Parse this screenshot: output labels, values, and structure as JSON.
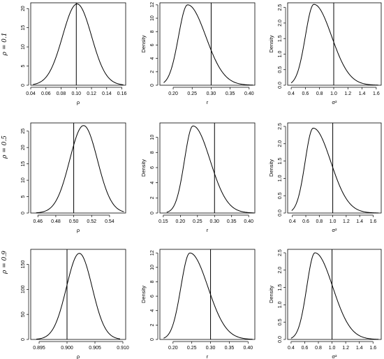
{
  "row_labels": [
    "ρ = 0.1",
    "ρ = 0.5",
    "ρ = 0.9"
  ],
  "chart_data": [
    {
      "type": "line",
      "ylabel": "",
      "xlabel": "ρ",
      "xlim": [
        0.04,
        0.165
      ],
      "ylim": [
        0,
        21.5
      ],
      "xticks": [
        "0.04",
        "0.06",
        "0.08",
        "0.10",
        "0.12",
        "0.14",
        "0.16"
      ],
      "xtick_values": [
        0.04,
        0.06,
        0.08,
        0.1,
        0.12,
        0.14,
        0.16
      ],
      "yticks": [
        "0",
        "5",
        "10",
        "15",
        "20"
      ],
      "ytick_values": [
        0,
        5,
        10,
        15,
        20
      ],
      "curve": {
        "shape": "normal",
        "mode": 0.101,
        "peak": 21.2,
        "sd": 0.019,
        "from": 0.043,
        "to": 0.162
      },
      "vline": 0.1
    },
    {
      "type": "line",
      "ylabel": "Density",
      "xlabel": "r",
      "xlim": [
        0.165,
        0.415
      ],
      "ylim": [
        0,
        12.3
      ],
      "xticks": [
        "0.20",
        "0.25",
        "0.30",
        "0.35",
        "0.40"
      ],
      "xtick_values": [
        0.2,
        0.25,
        0.3,
        0.35,
        0.4
      ],
      "yticks": [
        "0",
        "2",
        "4",
        "6",
        "8",
        "10",
        "12"
      ],
      "ytick_values": [
        0,
        2,
        4,
        6,
        8,
        10,
        12
      ],
      "curve": {
        "shape": "skewed",
        "mode": 0.238,
        "peak": 12.0,
        "sd_left": 0.024,
        "sd_right": 0.048,
        "from": 0.175,
        "to": 0.41
      },
      "vline": 0.3
    },
    {
      "type": "line",
      "ylabel": "Density",
      "xlabel": "σ²",
      "xlim": [
        0.35,
        1.67
      ],
      "ylim": [
        0,
        2.65
      ],
      "xticks": [
        "0.4",
        "0.6",
        "0.8",
        "1.0",
        "1.2",
        "1.4",
        "1.6"
      ],
      "xtick_values": [
        0.4,
        0.6,
        0.8,
        1.0,
        1.2,
        1.4,
        1.6
      ],
      "yticks": [
        "0.0",
        "0.5",
        "1.0",
        "1.5",
        "2.0",
        "2.5"
      ],
      "ytick_values": [
        0,
        0.5,
        1.0,
        1.5,
        2.0,
        2.5
      ],
      "curve": {
        "shape": "skewed",
        "mode": 0.72,
        "peak": 2.6,
        "sd_left": 0.12,
        "sd_right": 0.25,
        "from": 0.4,
        "to": 1.63
      },
      "vline": 1.0
    },
    {
      "type": "line",
      "ylabel": "",
      "xlabel": "ρ",
      "xlim": [
        0.452,
        0.558
      ],
      "ylim": [
        0,
        27.5
      ],
      "xticks": [
        "0.46",
        "0.48",
        "0.50",
        "0.52",
        "0.54"
      ],
      "xtick_values": [
        0.46,
        0.48,
        0.5,
        0.52,
        0.54
      ],
      "yticks": [
        "0",
        "5",
        "10",
        "15",
        "20",
        "25"
      ],
      "ytick_values": [
        0,
        5,
        10,
        15,
        20,
        25
      ],
      "curve": {
        "shape": "normal",
        "mode": 0.511,
        "peak": 26.7,
        "sd": 0.0155,
        "from": 0.458,
        "to": 0.556
      },
      "vline": 0.5
    },
    {
      "type": "line",
      "ylabel": "Density",
      "xlabel": "r",
      "xlim": [
        0.14,
        0.418
      ],
      "ylim": [
        0,
        11.9
      ],
      "xticks": [
        "0.15",
        "0.20",
        "0.25",
        "0.30",
        "0.35",
        "0.40"
      ],
      "xtick_values": [
        0.15,
        0.2,
        0.25,
        0.3,
        0.35,
        0.4
      ],
      "yticks": [
        "0",
        "2",
        "4",
        "6",
        "8",
        "10"
      ],
      "ytick_values": [
        0,
        2,
        4,
        6,
        8,
        10
      ],
      "curve": {
        "shape": "skewed",
        "mode": 0.237,
        "peak": 11.5,
        "sd_left": 0.025,
        "sd_right": 0.05,
        "from": 0.16,
        "to": 0.415
      },
      "vline": 0.3
    },
    {
      "type": "line",
      "ylabel": "Density",
      "xlabel": "σ²",
      "xlim": [
        0.33,
        1.72
      ],
      "ylim": [
        0,
        2.6
      ],
      "xticks": [
        "0.4",
        "0.6",
        "0.8",
        "1.0",
        "1.2",
        "1.4",
        "1.6"
      ],
      "xtick_values": [
        0.4,
        0.6,
        0.8,
        1.0,
        1.2,
        1.4,
        1.6
      ],
      "yticks": [
        "0.0",
        "0.5",
        "1.0",
        "1.5",
        "2.0",
        "2.5"
      ],
      "ytick_values": [
        0,
        0.5,
        1.0,
        1.5,
        2.0,
        2.5
      ],
      "curve": {
        "shape": "skewed",
        "mode": 0.71,
        "peak": 2.45,
        "sd_left": 0.12,
        "sd_right": 0.26,
        "from": 0.39,
        "to": 1.68
      },
      "vline": 1.0
    },
    {
      "type": "line",
      "ylabel": "",
      "xlabel": "ρ",
      "xlim": [
        0.8935,
        0.9105
      ],
      "ylim": [
        0,
        180
      ],
      "xticks": [
        "0.895",
        "0.900",
        "0.905",
        "0.910"
      ],
      "xtick_values": [
        0.895,
        0.9,
        0.905,
        0.91
      ],
      "yticks": [
        "0",
        "50",
        "100",
        "150"
      ],
      "ytick_values": [
        0,
        50,
        100,
        150
      ],
      "curve": {
        "shape": "normal",
        "mode": 0.9022,
        "peak": 172,
        "sd": 0.0023,
        "from": 0.8945,
        "to": 0.9095
      },
      "vline": 0.9
    },
    {
      "type": "line",
      "ylabel": "Density",
      "xlabel": "r",
      "xlim": [
        0.165,
        0.418
      ],
      "ylim": [
        0,
        12.5
      ],
      "xticks": [
        "0.20",
        "0.25",
        "0.30",
        "0.35",
        "0.40"
      ],
      "xtick_values": [
        0.2,
        0.25,
        0.3,
        0.35,
        0.4
      ],
      "yticks": [
        "0",
        "2",
        "4",
        "6",
        "8",
        "10",
        "12"
      ],
      "ytick_values": [
        0,
        2,
        4,
        6,
        8,
        10,
        12
      ],
      "curve": {
        "shape": "skewed",
        "mode": 0.245,
        "peak": 12.0,
        "sd_left": 0.024,
        "sd_right": 0.048,
        "from": 0.175,
        "to": 0.412
      },
      "vline": 0.3
    },
    {
      "type": "line",
      "ylabel": "Density",
      "xlabel": "σ²",
      "xlim": [
        0.35,
        1.72
      ],
      "ylim": [
        0,
        2.6
      ],
      "xticks": [
        "0.4",
        "0.6",
        "0.8",
        "1.0",
        "1.2",
        "1.4",
        "1.6"
      ],
      "xtick_values": [
        0.4,
        0.6,
        0.8,
        1.0,
        1.2,
        1.4,
        1.6
      ],
      "yticks": [
        "0.0",
        "0.5",
        "1.0",
        "1.5",
        "2.0",
        "2.5"
      ],
      "ytick_values": [
        0,
        0.5,
        1.0,
        1.5,
        2.0,
        2.5
      ],
      "curve": {
        "shape": "skewed",
        "mode": 0.75,
        "peak": 2.5,
        "sd_left": 0.12,
        "sd_right": 0.26,
        "from": 0.4,
        "to": 1.68
      },
      "vline": 1.0
    }
  ]
}
